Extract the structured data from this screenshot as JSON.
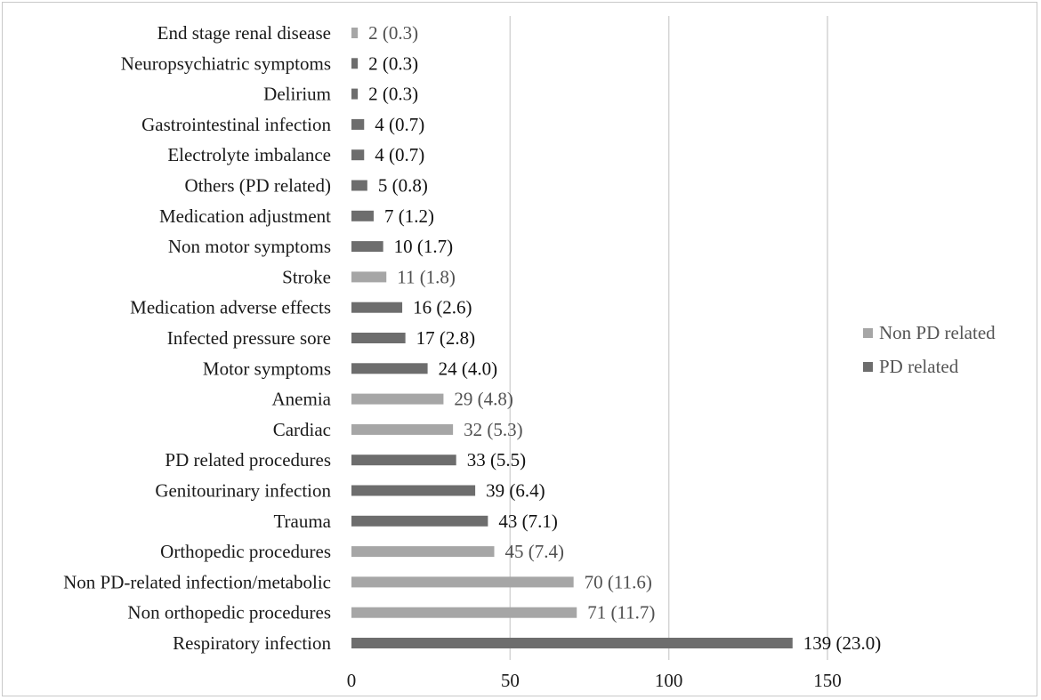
{
  "chart_data": {
    "type": "bar",
    "orientation": "horizontal",
    "xlim": [
      0,
      150
    ],
    "xticks": [
      0,
      50,
      100,
      150
    ],
    "grid": "vertical",
    "legend_position": "right",
    "legend": [
      {
        "key": "non",
        "name": "Non PD related",
        "color": "#a6a6a6"
      },
      {
        "key": "pd",
        "name": "PD related",
        "color": "#6d6d6d"
      }
    ],
    "categories": [
      {
        "label": "End stage renal disease",
        "value": 2,
        "display": "2 (0.3)",
        "group": "non"
      },
      {
        "label": "Neuropsychiatric symptoms",
        "value": 2,
        "display": "2 (0.3)",
        "group": "pd"
      },
      {
        "label": "Delirium",
        "value": 2,
        "display": "2 (0.3)",
        "group": "pd"
      },
      {
        "label": "Gastrointestinal infection",
        "value": 4,
        "display": "4 (0.7)",
        "group": "pd"
      },
      {
        "label": "Electrolyte imbalance",
        "value": 4,
        "display": "4 (0.7)",
        "group": "pd"
      },
      {
        "label": "Others (PD related)",
        "value": 5,
        "display": "5 (0.8)",
        "group": "pd"
      },
      {
        "label": "Medication adjustment",
        "value": 7,
        "display": "7 (1.2)",
        "group": "pd"
      },
      {
        "label": "Non motor symptoms",
        "value": 10,
        "display": "10 (1.7)",
        "group": "pd"
      },
      {
        "label": "Stroke",
        "value": 11,
        "display": "11 (1.8)",
        "group": "non"
      },
      {
        "label": "Medication adverse effects",
        "value": 16,
        "display": "16 (2.6)",
        "group": "pd"
      },
      {
        "label": "Infected pressure sore",
        "value": 17,
        "display": "17 (2.8)",
        "group": "pd"
      },
      {
        "label": "Motor symptoms",
        "value": 24,
        "display": "24 (4.0)",
        "group": "pd"
      },
      {
        "label": "Anemia",
        "value": 29,
        "display": "29 (4.8)",
        "group": "non"
      },
      {
        "label": "Cardiac",
        "value": 32,
        "display": "32 (5.3)",
        "group": "non"
      },
      {
        "label": "PD related procedures",
        "value": 33,
        "display": "33 (5.5)",
        "group": "pd"
      },
      {
        "label": "Genitourinary infection",
        "value": 39,
        "display": "39 (6.4)",
        "group": "pd"
      },
      {
        "label": "Trauma",
        "value": 43,
        "display": "43 (7.1)",
        "group": "pd"
      },
      {
        "label": "Orthopedic procedures",
        "value": 45,
        "display": "45 (7.4)",
        "group": "non"
      },
      {
        "label": "Non PD-related infection/metabolic",
        "value": 70,
        "display": "70 (11.6)",
        "group": "non"
      },
      {
        "label": "Non orthopedic procedures",
        "value": 71,
        "display": "71 (11.7)",
        "group": "non"
      },
      {
        "label": "Respiratory infection",
        "value": 139,
        "display": "139 (23.0)",
        "group": "pd"
      }
    ],
    "colors": {
      "non_bar": "#a6a6a6",
      "pd_bar": "#6d6d6d",
      "non_text": "#505050",
      "pd_text": "#111111",
      "grid": "#d4d4d4",
      "axis_text": "#1a1a1a"
    }
  }
}
